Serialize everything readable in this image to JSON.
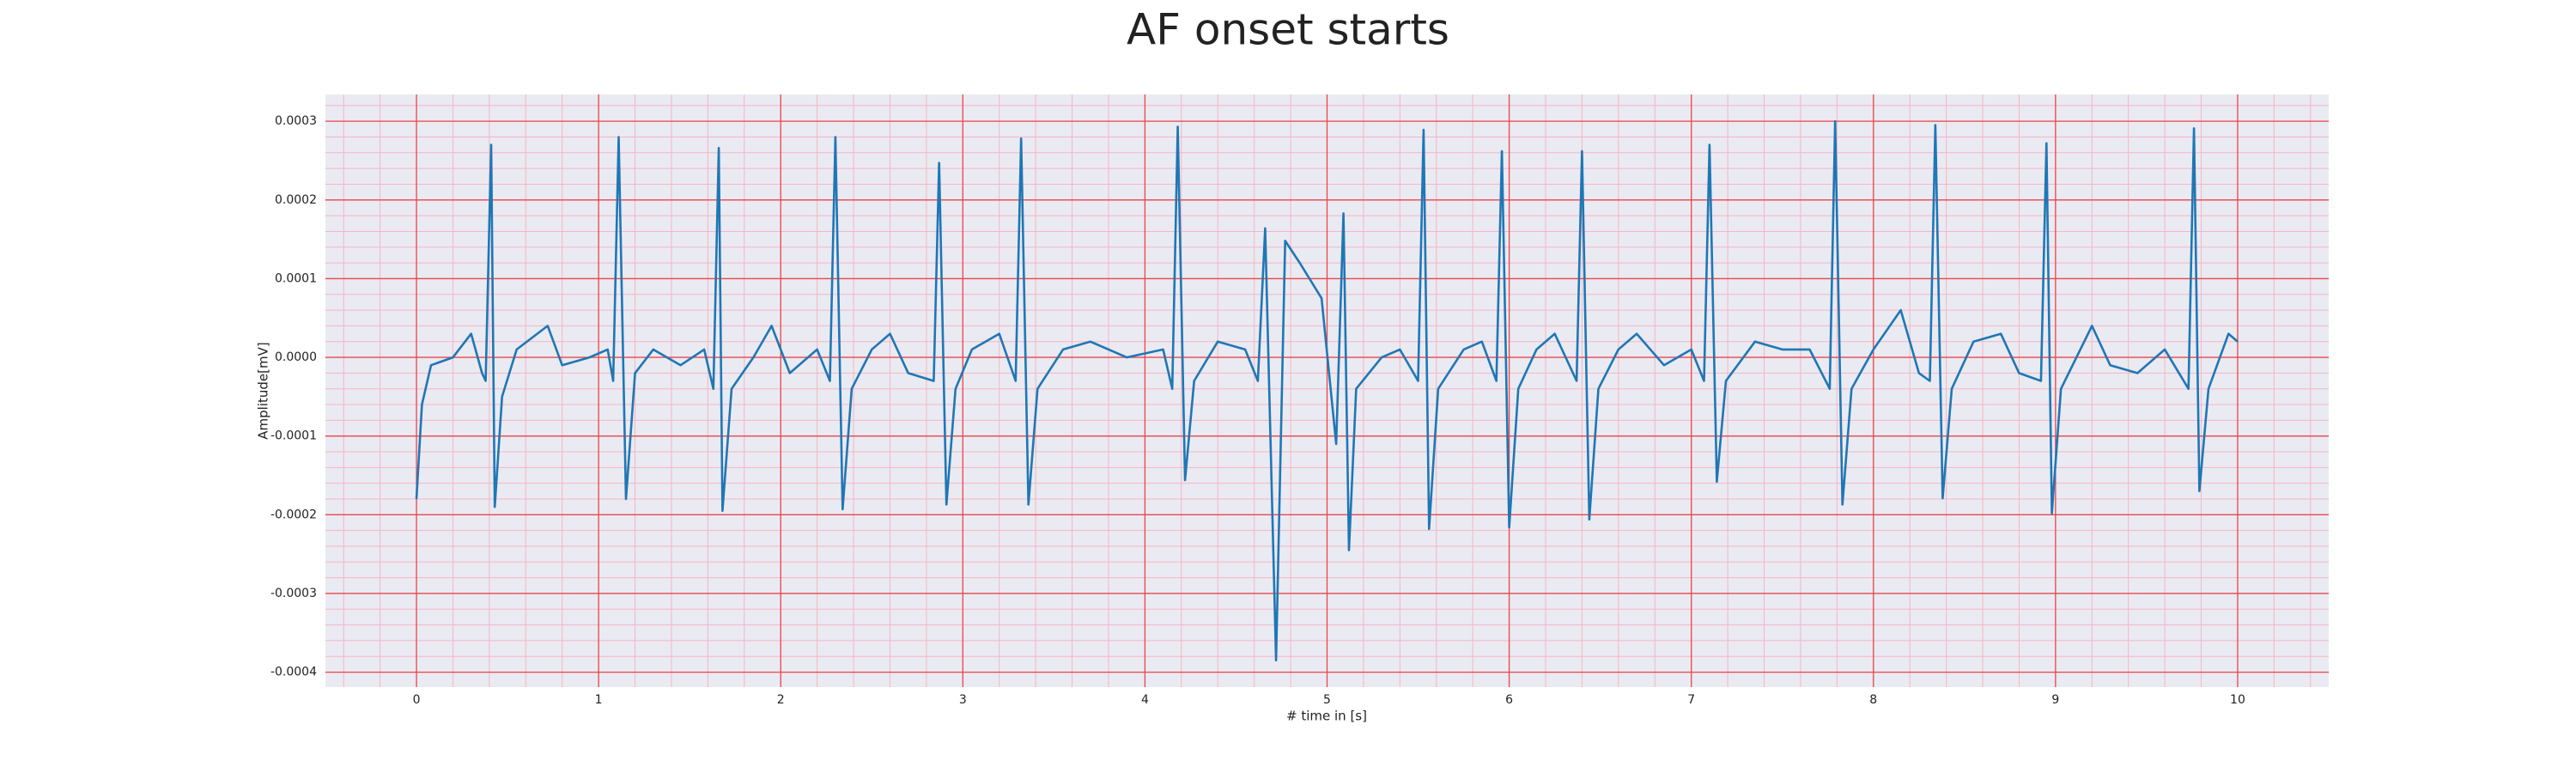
{
  "chart_data": {
    "type": "line",
    "title": "AF onset starts",
    "x_label": "# time in [s]",
    "y_label": "Amplitude[mV]",
    "xlim": [
      -0.5,
      10.5
    ],
    "ylim": [
      -0.000419,
      0.000334
    ],
    "xticks": [
      0,
      1,
      2,
      3,
      4,
      5,
      6,
      7,
      8,
      9,
      10
    ],
    "yticks": [
      {
        "value": -0.0004,
        "label": "-0.0004"
      },
      {
        "value": -0.0003,
        "label": "-0.0003"
      },
      {
        "value": -0.0002,
        "label": "-0.0002"
      },
      {
        "value": -0.0001,
        "label": "-0.0001"
      },
      {
        "value": 0,
        "label": "0.0000"
      },
      {
        "value": 0.0001,
        "label": "0.0001"
      },
      {
        "value": 0.0002,
        "label": "0.0002"
      },
      {
        "value": 0.0003,
        "label": "0.0003"
      }
    ],
    "grid": true,
    "minor_grid": true,
    "grid_color": "#e8474a",
    "minor_grid_color": "#f4b6c2",
    "background": "#eaeaf2",
    "x": [
      0,
      0.03,
      0.08,
      0.2,
      0.3,
      0.36,
      0.38,
      0.41,
      0.43,
      0.47,
      0.55,
      0.72,
      0.8,
      0.95,
      1.05,
      1.08,
      1.11,
      1.15,
      1.2,
      1.3,
      1.45,
      1.58,
      1.63,
      1.66,
      1.68,
      1.73,
      1.85,
      1.95,
      2.05,
      2.2,
      2.27,
      2.3,
      2.34,
      2.39,
      2.5,
      2.6,
      2.7,
      2.84,
      2.87,
      2.91,
      2.96,
      3.05,
      3.2,
      3.29,
      3.32,
      3.36,
      3.41,
      3.55,
      3.7,
      3.9,
      4.1,
      4.15,
      4.18,
      4.22,
      4.27,
      4.4,
      4.55,
      4.62,
      4.66,
      4.72,
      4.77,
      4.85,
      4.97,
      5.05,
      5.09,
      5.12,
      5.16,
      5.3,
      5.4,
      5.5,
      5.53,
      5.56,
      5.61,
      5.75,
      5.85,
      5.93,
      5.96,
      6.0,
      6.05,
      6.15,
      6.25,
      6.37,
      6.4,
      6.44,
      6.49,
      6.6,
      6.7,
      6.85,
      7.0,
      7.07,
      7.1,
      7.14,
      7.19,
      7.35,
      7.5,
      7.65,
      7.76,
      7.79,
      7.83,
      7.88,
      8.0,
      8.15,
      8.25,
      8.31,
      8.34,
      8.38,
      8.43,
      8.55,
      8.7,
      8.8,
      8.92,
      8.95,
      8.98,
      9.03,
      9.2,
      9.3,
      9.45,
      9.6,
      9.73,
      9.76,
      9.79,
      9.84,
      9.95,
      10.0
    ],
    "series": [
      {
        "color": "#1f77b4",
        "values": [
          -0.00018,
          -6e-05,
          -1e-05,
          0.0,
          3e-05,
          -2e-05,
          -3e-05,
          0.00027,
          -0.00019,
          -5e-05,
          1e-05,
          4e-05,
          -1e-05,
          0.0,
          1e-05,
          -3e-05,
          0.00028,
          -0.00018,
          -2e-05,
          1e-05,
          -1e-05,
          1e-05,
          -4e-05,
          0.000266,
          -0.000195,
          -4e-05,
          0.0,
          4e-05,
          -2e-05,
          1e-05,
          -3e-05,
          0.00028,
          -0.000193,
          -4e-05,
          1e-05,
          3e-05,
          -2e-05,
          -3e-05,
          0.000247,
          -0.000187,
          -4e-05,
          1e-05,
          3e-05,
          -3e-05,
          0.000278,
          -0.000187,
          -4e-05,
          1e-05,
          2e-05,
          0.0,
          1e-05,
          -4e-05,
          0.000293,
          -0.000156,
          -3e-05,
          2e-05,
          1e-05,
          -3e-05,
          0.000164,
          -0.000385,
          0.000148,
          0.00012,
          7.5e-05,
          -0.00011,
          0.000183,
          -0.000245,
          -4e-05,
          0.0,
          1e-05,
          -3e-05,
          0.000289,
          -0.000218,
          -4e-05,
          1e-05,
          2e-05,
          -3e-05,
          0.000262,
          -0.000216,
          -4e-05,
          1e-05,
          3e-05,
          -3e-05,
          0.000262,
          -0.000206,
          -4e-05,
          1e-05,
          3e-05,
          -1e-05,
          1e-05,
          -3e-05,
          0.00027,
          -0.000158,
          -3e-05,
          2e-05,
          1e-05,
          1e-05,
          -4e-05,
          0.0003,
          -0.000187,
          -4e-05,
          1e-05,
          6e-05,
          -2e-05,
          -3e-05,
          0.000295,
          -0.000179,
          -4e-05,
          2e-05,
          3e-05,
          -2e-05,
          -3e-05,
          0.000272,
          -0.000198,
          -4e-05,
          4e-05,
          -1e-05,
          -2e-05,
          1e-05,
          -4e-05,
          0.000291,
          -0.00017,
          -4e-05,
          3e-05,
          2e-05
        ]
      }
    ]
  }
}
